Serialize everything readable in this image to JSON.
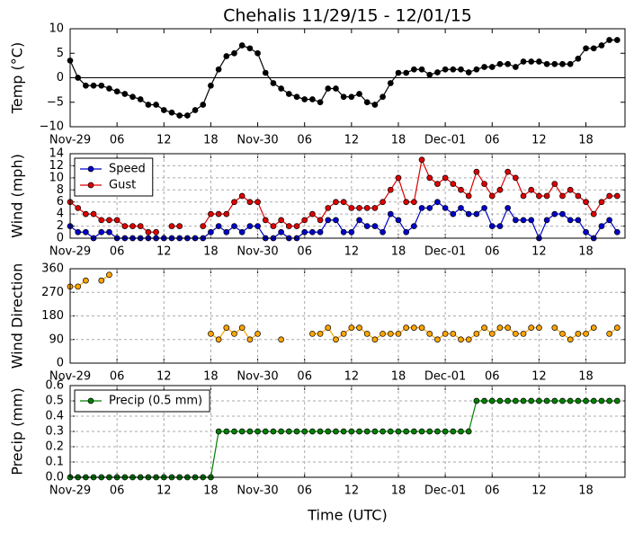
{
  "chart_data": [
    {
      "type": "line",
      "title": "Chehalis 11/29/15 - 12/01/15",
      "ylabel": "Temp (°C)",
      "x": [
        0,
        1,
        2,
        3,
        4,
        5,
        6,
        7,
        8,
        9,
        10,
        11,
        12,
        13,
        14,
        15,
        16,
        17,
        18,
        19,
        20,
        21,
        22,
        23,
        24,
        25,
        26,
        27,
        28,
        29,
        30,
        31,
        32,
        33,
        34,
        35,
        36,
        37,
        38,
        39,
        40,
        41,
        42,
        43,
        44,
        45,
        46,
        47,
        48,
        49,
        50,
        51,
        52,
        53,
        54,
        55,
        56,
        57,
        58,
        59,
        60,
        61,
        62,
        63,
        64,
        65,
        66,
        67,
        68,
        69,
        70
      ],
      "xlim": [
        0,
        71
      ],
      "xticks": [
        {
          "value": 0,
          "label": "Nov-29"
        },
        {
          "value": 6,
          "label": "06"
        },
        {
          "value": 12,
          "label": "12"
        },
        {
          "value": 18,
          "label": "18"
        },
        {
          "value": 24,
          "label": "Nov-30"
        },
        {
          "value": 30,
          "label": "06"
        },
        {
          "value": 36,
          "label": "12"
        },
        {
          "value": 42,
          "label": "18"
        },
        {
          "value": 48,
          "label": "Dec-01"
        },
        {
          "value": 54,
          "label": "06"
        },
        {
          "value": 60,
          "label": "12"
        },
        {
          "value": 66,
          "label": "18"
        }
      ],
      "ylim": [
        -10,
        10
      ],
      "yticks": [
        {
          "value": -10,
          "label": "−10"
        },
        {
          "value": -5,
          "label": "−5"
        },
        0,
        5,
        10
      ],
      "hline": 0,
      "grid": false,
      "series": [
        {
          "color": "#000000",
          "values": [
            3.5,
            0,
            -1.6,
            -1.6,
            -1.6,
            -2.2,
            -2.8,
            -3.3,
            -3.9,
            -4.4,
            -5.5,
            -5.5,
            -6.6,
            -7.1,
            -7.7,
            -7.7,
            -6.6,
            -5.5,
            -1.6,
            1.7,
            4.4,
            5,
            6.6,
            6,
            5,
            1,
            -1.1,
            -2.2,
            -3.3,
            -3.9,
            -4.4,
            -4.4,
            -5,
            -2.2,
            -2.2,
            -3.9,
            -3.9,
            -3.3,
            -5,
            -5.5,
            -3.9,
            -1.1,
            1,
            1,
            1.7,
            1.7,
            0.6,
            1.1,
            1.7,
            1.7,
            1.7,
            1.1,
            1.7,
            2.2,
            2.2,
            2.8,
            2.8,
            2.2,
            3.3,
            3.3,
            3.3,
            2.8,
            2.8,
            2.8,
            2.8,
            3.9,
            6,
            6,
            6.6,
            7.7,
            7.7
          ]
        }
      ]
    },
    {
      "type": "line",
      "ylabel": "Wind (mph)",
      "x": [
        0,
        1,
        2,
        3,
        4,
        5,
        6,
        7,
        8,
        9,
        10,
        11,
        12,
        13,
        14,
        15,
        16,
        17,
        18,
        19,
        20,
        21,
        22,
        23,
        24,
        25,
        26,
        27,
        28,
        29,
        30,
        31,
        32,
        33,
        34,
        35,
        36,
        37,
        38,
        39,
        40,
        41,
        42,
        43,
        44,
        45,
        46,
        47,
        48,
        49,
        50,
        51,
        52,
        53,
        54,
        55,
        56,
        57,
        58,
        59,
        60,
        61,
        62,
        63,
        64,
        65,
        66,
        67,
        68,
        69,
        70
      ],
      "xlim": [
        0,
        71
      ],
      "xticks": [
        {
          "value": 0,
          "label": "Nov-29"
        },
        {
          "value": 6,
          "label": "06"
        },
        {
          "value": 12,
          "label": "12"
        },
        {
          "value": 18,
          "label": "18"
        },
        {
          "value": 24,
          "label": "Nov-30"
        },
        {
          "value": 30,
          "label": "06"
        },
        {
          "value": 36,
          "label": "12"
        },
        {
          "value": 42,
          "label": "18"
        },
        {
          "value": 48,
          "label": "Dec-01"
        },
        {
          "value": 54,
          "label": "06"
        },
        {
          "value": 60,
          "label": "12"
        },
        {
          "value": 66,
          "label": "18"
        }
      ],
      "ylim": [
        0,
        14
      ],
      "yticks": [
        0,
        2,
        4,
        6,
        8,
        10,
        12,
        14
      ],
      "grid": true,
      "legend": "upper left",
      "series": [
        {
          "name": "Speed",
          "color": "#0000cc",
          "values": [
            2,
            1,
            1,
            0,
            1,
            1,
            0,
            0,
            0,
            0,
            0,
            0,
            0,
            0,
            0,
            0,
            0,
            0,
            1,
            2,
            1,
            2,
            1,
            2,
            2,
            0,
            0,
            1,
            0,
            0,
            1,
            1,
            1,
            3,
            3,
            1,
            1,
            3,
            2,
            2,
            1,
            4,
            3,
            1,
            2,
            5,
            5,
            6,
            5,
            4,
            5,
            4,
            4,
            5,
            2,
            2,
            5,
            3,
            3,
            3,
            0,
            3,
            4,
            4,
            3,
            3,
            1,
            0,
            2,
            3,
            1
          ]
        },
        {
          "name": "Gust",
          "color": "#dd0000",
          "values": [
            6,
            5,
            4,
            4,
            3,
            3,
            3,
            2,
            2,
            2,
            1,
            1,
            null,
            2,
            2,
            null,
            null,
            2,
            4,
            4,
            4,
            6,
            7,
            6,
            6,
            3,
            2,
            3,
            2,
            2,
            3,
            4,
            3,
            5,
            6,
            6,
            5,
            5,
            5,
            5,
            6,
            8,
            10,
            6,
            6,
            13,
            10,
            9,
            10,
            9,
            8,
            7,
            11,
            9,
            7,
            8,
            11,
            10,
            7,
            8,
            7,
            7,
            9,
            7,
            8,
            7,
            6,
            4,
            6,
            7,
            7
          ]
        }
      ]
    },
    {
      "type": "line",
      "ylabel": "Wind Direction",
      "x": [
        0,
        1,
        2,
        3,
        4,
        5,
        6,
        7,
        8,
        9,
        10,
        11,
        12,
        13,
        14,
        15,
        16,
        17,
        18,
        19,
        20,
        21,
        22,
        23,
        24,
        25,
        26,
        27,
        28,
        29,
        30,
        31,
        32,
        33,
        34,
        35,
        36,
        37,
        38,
        39,
        40,
        41,
        42,
        43,
        44,
        45,
        46,
        47,
        48,
        49,
        50,
        51,
        52,
        53,
        54,
        55,
        56,
        57,
        58,
        59,
        60,
        61,
        62,
        63,
        64,
        65,
        66,
        67,
        68,
        69,
        70
      ],
      "xlim": [
        0,
        71
      ],
      "xticks": [
        {
          "value": 0,
          "label": "Nov-29"
        },
        {
          "value": 6,
          "label": "06"
        },
        {
          "value": 12,
          "label": "12"
        },
        {
          "value": 18,
          "label": "18"
        },
        {
          "value": 24,
          "label": "Nov-30"
        },
        {
          "value": 30,
          "label": "06"
        },
        {
          "value": 36,
          "label": "12"
        },
        {
          "value": 42,
          "label": "18"
        },
        {
          "value": 48,
          "label": "Dec-01"
        },
        {
          "value": 54,
          "label": "06"
        },
        {
          "value": 60,
          "label": "12"
        },
        {
          "value": 66,
          "label": "18"
        }
      ],
      "ylim": [
        0,
        360
      ],
      "yticks": [
        0,
        90,
        180,
        270,
        360
      ],
      "grid": true,
      "series": [
        {
          "color": "#ffa500",
          "values": [
            292,
            292,
            315,
            null,
            315,
            337,
            null,
            null,
            null,
            null,
            null,
            null,
            null,
            null,
            null,
            null,
            null,
            null,
            112,
            90,
            135,
            112,
            135,
            90,
            112,
            null,
            null,
            90,
            null,
            null,
            null,
            112,
            112,
            135,
            90,
            112,
            135,
            135,
            112,
            90,
            112,
            112,
            112,
            135,
            135,
            135,
            112,
            90,
            112,
            112,
            90,
            90,
            112,
            135,
            112,
            135,
            135,
            112,
            112,
            135,
            135,
            null,
            135,
            112,
            90,
            112,
            112,
            135,
            null,
            112,
            135
          ]
        }
      ]
    },
    {
      "type": "line",
      "ylabel": "Precip (mm)",
      "xlabel": "Time (UTC)",
      "x": [
        0,
        1,
        2,
        3,
        4,
        5,
        6,
        7,
        8,
        9,
        10,
        11,
        12,
        13,
        14,
        15,
        16,
        17,
        18,
        19,
        20,
        21,
        22,
        23,
        24,
        25,
        26,
        27,
        28,
        29,
        30,
        31,
        32,
        33,
        34,
        35,
        36,
        37,
        38,
        39,
        40,
        41,
        42,
        43,
        44,
        45,
        46,
        47,
        48,
        49,
        50,
        51,
        52,
        53,
        54,
        55,
        56,
        57,
        58,
        59,
        60,
        61,
        62,
        63,
        64,
        65,
        66,
        67,
        68,
        69,
        70
      ],
      "xlim": [
        0,
        71
      ],
      "xticks": [
        {
          "value": 0,
          "label": "Nov-29"
        },
        {
          "value": 6,
          "label": "06"
        },
        {
          "value": 12,
          "label": "12"
        },
        {
          "value": 18,
          "label": "18"
        },
        {
          "value": 24,
          "label": "Nov-30"
        },
        {
          "value": 30,
          "label": "06"
        },
        {
          "value": 36,
          "label": "12"
        },
        {
          "value": 42,
          "label": "18"
        },
        {
          "value": 48,
          "label": "Dec-01"
        },
        {
          "value": 54,
          "label": "06"
        },
        {
          "value": 60,
          "label": "12"
        },
        {
          "value": 66,
          "label": "18"
        }
      ],
      "ylim": [
        0,
        0.6
      ],
      "yticks": [
        {
          "value": 0,
          "label": "0.0"
        },
        0.1,
        0.2,
        0.3,
        0.4,
        0.5,
        0.6
      ],
      "grid": true,
      "legend": "upper left",
      "series": [
        {
          "name": "Precip (0.5 mm)",
          "color": "#008000",
          "values": [
            0,
            0,
            0,
            0,
            0,
            0,
            0,
            0,
            0,
            0,
            0,
            0,
            0,
            0,
            0,
            0,
            0,
            0,
            0,
            0.3,
            0.3,
            0.3,
            0.3,
            0.3,
            0.3,
            0.3,
            0.3,
            0.3,
            0.3,
            0.3,
            0.3,
            0.3,
            0.3,
            0.3,
            0.3,
            0.3,
            0.3,
            0.3,
            0.3,
            0.3,
            0.3,
            0.3,
            0.3,
            0.3,
            0.3,
            0.3,
            0.3,
            0.3,
            0.3,
            0.3,
            0.3,
            0.3,
            0.5,
            0.5,
            0.5,
            0.5,
            0.5,
            0.5,
            0.5,
            0.5,
            0.5,
            0.5,
            0.5,
            0.5,
            0.5,
            0.5,
            0.5,
            0.5,
            0.5,
            0.5,
            0.5
          ]
        }
      ]
    }
  ]
}
